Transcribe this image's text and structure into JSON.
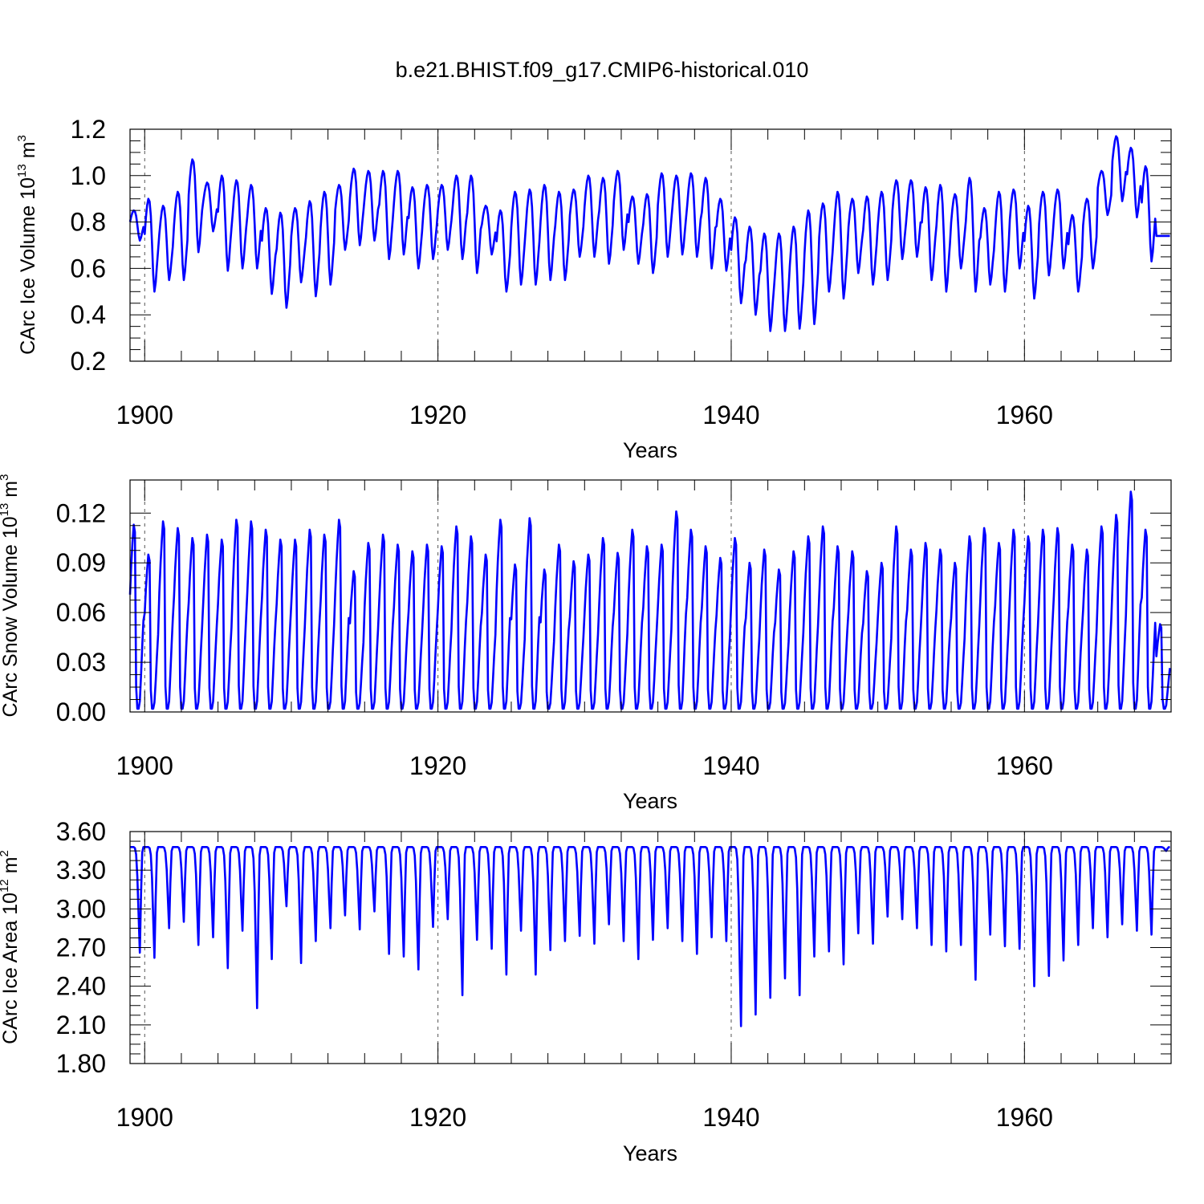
{
  "figure_title": "b.e21.BHIST.f09_g17.CMIP6-historical.010",
  "colors": {
    "series": "#0000ff",
    "axis": "#000000",
    "gridline": "#555555"
  },
  "chart_data": [
    {
      "type": "line",
      "title": "b.e21.BHIST.f09_g17.CMIP6-historical.010",
      "xlabel": "Years",
      "ylabel": "CArc Ice Volume 10",
      "ylabel_exp": "13",
      "ylabel_unit": "m",
      "ylabel_unit_exp": "3",
      "xlim": [
        1899.0,
        1970.0
      ],
      "ylim": [
        0.2,
        1.2
      ],
      "xticks": [
        1900,
        1920,
        1940,
        1960
      ],
      "yticks": [
        0.2,
        0.4,
        0.6,
        0.8,
        1.0,
        1.2
      ],
      "ytick_labels": [
        "0.2",
        "0.4",
        "0.6",
        "0.8",
        "1.0",
        "1.2"
      ],
      "grid": "dashed vertical lines at major x ticks",
      "series": [
        {
          "name": "CArc Ice Volume",
          "resolution": "monthly, 1899.0-1970.0",
          "annual_max": [
            0.85,
            0.9,
            0.87,
            0.93,
            1.07,
            0.97,
            1.0,
            0.98,
            0.96,
            0.86,
            0.84,
            0.86,
            0.89,
            0.93,
            0.96,
            1.03,
            1.02,
            1.02,
            1.02,
            0.95,
            0.96,
            0.96,
            1.0,
            1.0,
            0.87,
            0.85,
            0.93,
            0.94,
            0.96,
            0.93,
            0.94,
            1.0,
            0.99,
            1.02,
            0.91,
            0.92,
            1.01,
            1.0,
            1.01,
            0.99,
            0.9,
            0.82,
            0.78,
            0.75,
            0.75,
            0.78,
            0.85,
            0.88,
            0.93,
            0.9,
            0.91,
            0.93,
            0.98,
            0.98,
            0.95,
            0.96,
            0.92,
            0.99,
            0.86,
            0.93,
            0.94,
            0.87,
            0.93,
            0.94,
            0.83,
            0.9,
            1.02,
            1.17,
            1.12,
            1.04,
            0.74
          ],
          "annual_min": [
            0.72,
            0.5,
            0.55,
            0.55,
            0.67,
            0.76,
            0.59,
            0.6,
            0.6,
            0.49,
            0.43,
            0.54,
            0.48,
            0.53,
            0.68,
            0.7,
            0.72,
            0.64,
            0.66,
            0.6,
            0.64,
            0.68,
            0.64,
            0.58,
            0.66,
            0.5,
            0.53,
            0.53,
            0.55,
            0.55,
            0.65,
            0.65,
            0.62,
            0.68,
            0.62,
            0.58,
            0.65,
            0.66,
            0.65,
            0.6,
            0.59,
            0.45,
            0.4,
            0.33,
            0.33,
            0.34,
            0.36,
            0.5,
            0.47,
            0.58,
            0.53,
            0.55,
            0.64,
            0.65,
            0.55,
            0.5,
            0.6,
            0.5,
            0.53,
            0.5,
            0.6,
            0.47,
            0.57,
            0.6,
            0.5,
            0.6,
            0.83,
            0.89,
            0.82,
            0.63,
            0.74
          ]
        }
      ]
    },
    {
      "type": "line",
      "xlabel": "Years",
      "ylabel": "CArc Snow Volume 10",
      "ylabel_exp": "13",
      "ylabel_unit": "m",
      "ylabel_unit_exp": "3",
      "xlim": [
        1899.0,
        1970.0
      ],
      "ylim": [
        0.0,
        0.14
      ],
      "xticks": [
        1900,
        1920,
        1940,
        1960
      ],
      "yticks": [
        0.0,
        0.03,
        0.06,
        0.09,
        0.12
      ],
      "ytick_labels": [
        "0.00",
        "0.03",
        "0.06",
        "0.09",
        "0.12"
      ],
      "grid": "dashed vertical lines at major x ticks",
      "series": [
        {
          "name": "CArc Snow Volume",
          "resolution": "monthly, 1899.0-1970.0",
          "annual_max": [
            0.113,
            0.095,
            0.115,
            0.111,
            0.105,
            0.107,
            0.104,
            0.116,
            0.115,
            0.11,
            0.104,
            0.104,
            0.11,
            0.107,
            0.116,
            0.085,
            0.102,
            0.107,
            0.101,
            0.097,
            0.101,
            0.1,
            0.112,
            0.106,
            0.095,
            0.116,
            0.089,
            0.117,
            0.086,
            0.101,
            0.091,
            0.095,
            0.105,
            0.096,
            0.11,
            0.1,
            0.101,
            0.121,
            0.11,
            0.1,
            0.093,
            0.105,
            0.09,
            0.098,
            0.086,
            0.097,
            0.106,
            0.112,
            0.1,
            0.097,
            0.085,
            0.09,
            0.112,
            0.098,
            0.102,
            0.098,
            0.09,
            0.106,
            0.111,
            0.102,
            0.11,
            0.106,
            0.11,
            0.111,
            0.101,
            0.098,
            0.112,
            0.119,
            0.133,
            0.11,
            0.053
          ]
        }
      ]
    },
    {
      "type": "line",
      "xlabel": "Years",
      "ylabel": "CArc Ice Area 10",
      "ylabel_exp": "12",
      "ylabel_unit": "m",
      "ylabel_unit_exp": "2",
      "xlim": [
        1899.0,
        1970.0
      ],
      "ylim": [
        1.8,
        3.6
      ],
      "xticks": [
        1900,
        1920,
        1940,
        1960
      ],
      "yticks": [
        1.8,
        2.1,
        2.4,
        2.7,
        3.0,
        3.3,
        3.6
      ],
      "ytick_labels": [
        "1.80",
        "2.10",
        "2.40",
        "2.70",
        "3.00",
        "3.30",
        "3.60"
      ],
      "grid": "dashed vertical lines at major x ticks",
      "series": [
        {
          "name": "CArc Ice Area",
          "resolution": "monthly, 1899.0-1970.0",
          "annual_max": 3.48,
          "annual_min": [
            2.66,
            2.62,
            2.85,
            2.9,
            2.72,
            2.78,
            2.54,
            2.83,
            2.23,
            2.61,
            3.02,
            2.58,
            2.75,
            2.85,
            2.95,
            2.84,
            2.98,
            2.65,
            2.63,
            2.53,
            2.86,
            2.92,
            2.33,
            2.76,
            2.69,
            2.49,
            2.83,
            2.49,
            2.68,
            2.75,
            2.79,
            2.73,
            2.88,
            2.75,
            2.61,
            2.76,
            2.85,
            2.75,
            2.65,
            2.78,
            2.75,
            2.09,
            2.18,
            2.31,
            2.46,
            2.33,
            2.63,
            2.67,
            2.57,
            2.81,
            2.73,
            2.94,
            2.92,
            2.85,
            2.72,
            2.67,
            2.72,
            2.45,
            2.8,
            2.71,
            2.69,
            2.4,
            2.48,
            2.6,
            2.72,
            2.85,
            2.78,
            2.88,
            2.83,
            2.8,
            3.45
          ]
        }
      ]
    }
  ]
}
